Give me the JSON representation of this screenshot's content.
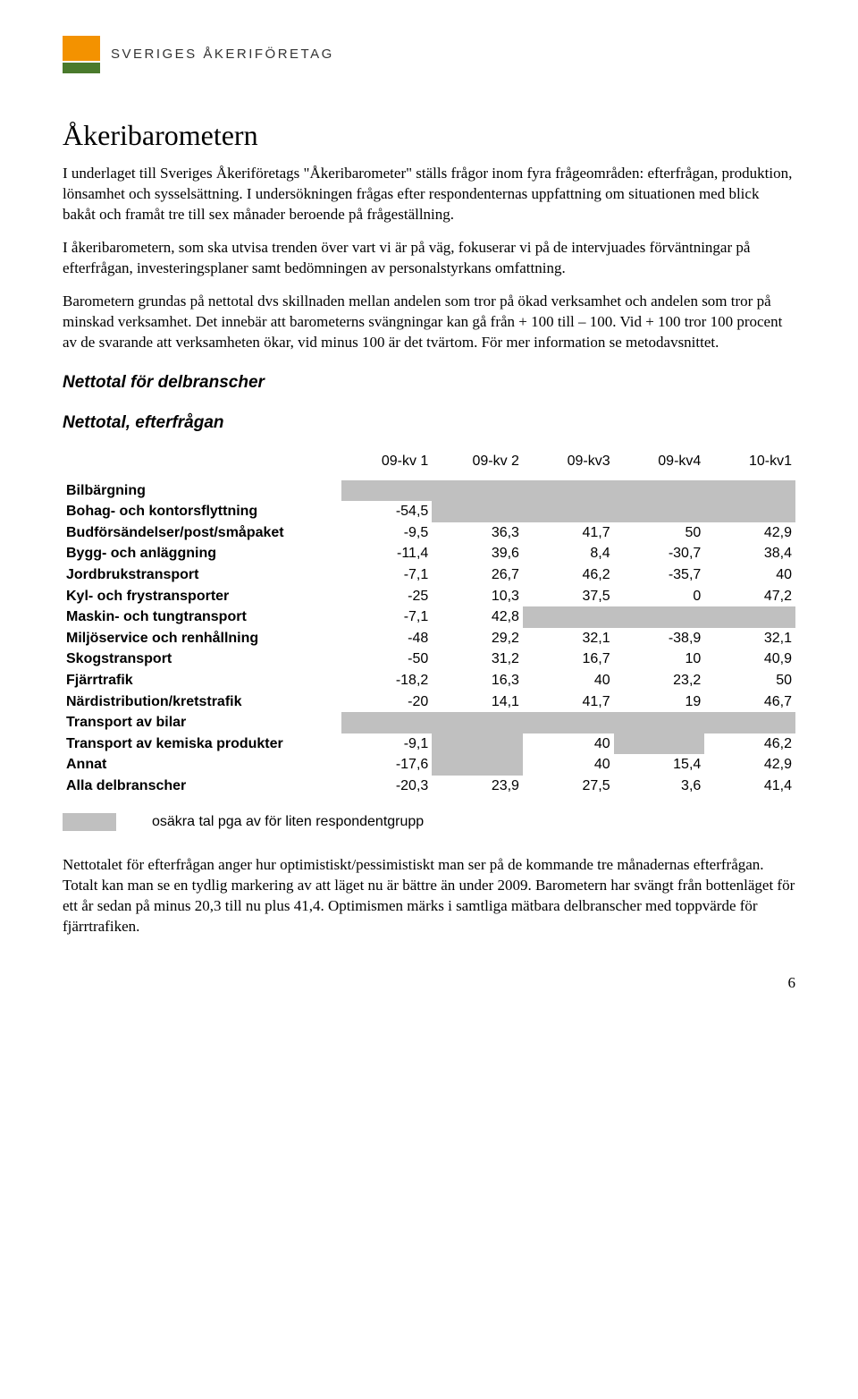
{
  "logo": {
    "brand_text": "SVERIGES ÅKERIFÖRETAG"
  },
  "title": "Åkeribarometern",
  "paragraphs": {
    "p1": "I underlaget till Sveriges Åkeriföretags \"Åkeribarometer\" ställs frågor inom fyra frågeområden: efterfrågan, produktion, lönsamhet och sysselsättning. I undersökningen frågas efter respondenternas uppfattning om situationen med blick bakåt och framåt tre till sex månader beroende på frågeställning.",
    "p2": "I åkeribarometern, som ska utvisa trenden över vart vi är på väg, fokuserar vi på de intervjuades förväntningar på efterfrågan, investeringsplaner samt bedömningen av personalstyrkans omfattning.",
    "p3": "Barometern grundas på nettotal dvs skillnaden mellan andelen som tror på ökad verksamhet och andelen som tror på minskad verksamhet. Det innebär att barometerns svängningar kan gå från + 100 till – 100. Vid + 100 tror 100 procent av de svarande att verksamheten ökar, vid minus 100 är det tvärtom. För mer information se metodavsnittet.",
    "p4": "Nettotalet för efterfrågan anger hur optimistiskt/pessimistiskt man ser på de kommande tre månadernas efterfrågan. Totalt kan man se en tydlig markering av att läget nu är bättre än under 2009. Barometern har svängt från bottenläget för ett år sedan på minus 20,3 till nu plus 41,4. Optimismen märks i samtliga mätbara delbranscher med toppvärde för fjärrtrafiken."
  },
  "subheadings": {
    "s1": "Nettotal för delbranscher",
    "s2": "Nettotal, efterfrågan"
  },
  "table": {
    "columns": [
      "09-kv 1",
      "09-kv 2",
      "09-kv3",
      "09-kv4",
      "10-kv1"
    ],
    "col_widths_pct": [
      38,
      12.4,
      12.4,
      12.4,
      12.4,
      12.4
    ],
    "grey_color": "#c0c0c0",
    "rows": [
      {
        "label": "Bilbärgning",
        "cells": [
          {
            "v": "",
            "g": true
          },
          {
            "v": "",
            "g": true
          },
          {
            "v": "",
            "g": true
          },
          {
            "v": "",
            "g": true
          },
          {
            "v": "",
            "g": true
          }
        ]
      },
      {
        "label": "Bohag- och kontorsflyttning",
        "cells": [
          {
            "v": "-54,5"
          },
          {
            "v": "",
            "g": true
          },
          {
            "v": "",
            "g": true
          },
          {
            "v": "",
            "g": true
          },
          {
            "v": "",
            "g": true
          }
        ]
      },
      {
        "label": "Budförsändelser/post/småpaket",
        "cells": [
          {
            "v": "-9,5"
          },
          {
            "v": "36,3"
          },
          {
            "v": "41,7"
          },
          {
            "v": "50"
          },
          {
            "v": "42,9"
          }
        ]
      },
      {
        "label": "Bygg- och anläggning",
        "cells": [
          {
            "v": "-11,4"
          },
          {
            "v": "39,6"
          },
          {
            "v": "8,4"
          },
          {
            "v": "-30,7"
          },
          {
            "v": "38,4"
          }
        ]
      },
      {
        "label": "Jordbrukstransport",
        "cells": [
          {
            "v": "-7,1"
          },
          {
            "v": "26,7"
          },
          {
            "v": "46,2"
          },
          {
            "v": "-35,7"
          },
          {
            "v": "40"
          }
        ]
      },
      {
        "label": "Kyl- och frystransporter",
        "cells": [
          {
            "v": "-25"
          },
          {
            "v": "10,3"
          },
          {
            "v": "37,5"
          },
          {
            "v": "0"
          },
          {
            "v": "47,2"
          }
        ]
      },
      {
        "label": "Maskin- och tungtransport",
        "cells": [
          {
            "v": "-7,1"
          },
          {
            "v": "42,8"
          },
          {
            "v": "",
            "g": true
          },
          {
            "v": "",
            "g": true
          },
          {
            "v": "",
            "g": true
          }
        ]
      },
      {
        "label": "Miljöservice och renhållning",
        "cells": [
          {
            "v": "-48"
          },
          {
            "v": "29,2"
          },
          {
            "v": "32,1"
          },
          {
            "v": "-38,9"
          },
          {
            "v": "32,1"
          }
        ]
      },
      {
        "label": "Skogstransport",
        "cells": [
          {
            "v": "-50"
          },
          {
            "v": "31,2"
          },
          {
            "v": "16,7"
          },
          {
            "v": "10"
          },
          {
            "v": "40,9"
          }
        ]
      },
      {
        "label": "Fjärrtrafik",
        "cells": [
          {
            "v": "-18,2"
          },
          {
            "v": "16,3"
          },
          {
            "v": "40"
          },
          {
            "v": "23,2"
          },
          {
            "v": "50"
          }
        ]
      },
      {
        "label": "Närdistribution/kretstrafik",
        "cells": [
          {
            "v": "-20"
          },
          {
            "v": "14,1"
          },
          {
            "v": "41,7"
          },
          {
            "v": "19"
          },
          {
            "v": "46,7"
          }
        ]
      },
      {
        "label": "Transport av bilar",
        "cells": [
          {
            "v": "",
            "g": true
          },
          {
            "v": "",
            "g": true
          },
          {
            "v": "",
            "g": true
          },
          {
            "v": "",
            "g": true
          },
          {
            "v": "",
            "g": true
          }
        ]
      },
      {
        "label": "Transport av kemiska produkter",
        "cells": [
          {
            "v": "-9,1"
          },
          {
            "v": "",
            "g": true
          },
          {
            "v": "40"
          },
          {
            "v": "",
            "g": true
          },
          {
            "v": "46,2"
          }
        ]
      },
      {
        "label": "Annat",
        "cells": [
          {
            "v": "-17,6"
          },
          {
            "v": "",
            "g": true
          },
          {
            "v": "40"
          },
          {
            "v": "15,4"
          },
          {
            "v": "42,9"
          }
        ]
      },
      {
        "label": "Alla delbranscher",
        "cells": [
          {
            "v": "-20,3"
          },
          {
            "v": "23,9"
          },
          {
            "v": "27,5"
          },
          {
            "v": "3,6"
          },
          {
            "v": "41,4"
          }
        ]
      }
    ]
  },
  "legend": {
    "text": "osäkra tal pga av för liten respondentgrupp"
  },
  "page_number": "6"
}
